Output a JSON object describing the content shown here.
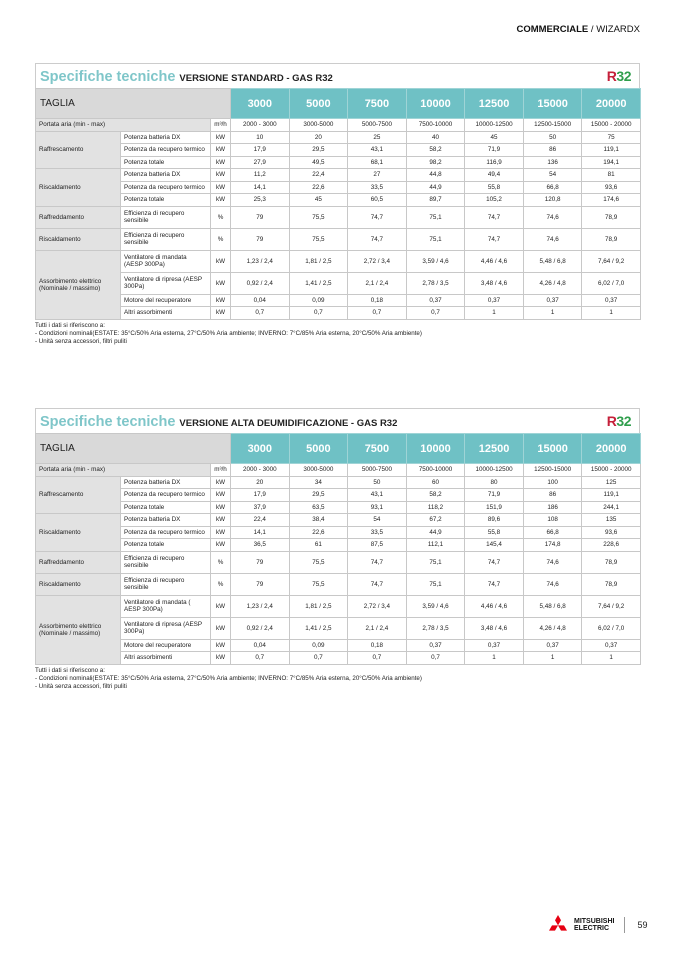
{
  "header": {
    "section": "COMMERCIALE",
    "separator": " / ",
    "product": "WIZARDX"
  },
  "tables": [
    {
      "title_main": "Specifiche tecniche",
      "title_sub": "VERSIONE STANDARD - GAS R32",
      "badge": {
        "r": "R",
        "n": "32"
      },
      "taglia_label": "TAGLIA",
      "sizes": [
        "3000",
        "5000",
        "7500",
        "10000",
        "12500",
        "15000",
        "20000"
      ],
      "rows": [
        {
          "label": "Portata aria (min - max)",
          "unit": "m³/h",
          "values": [
            "2000 - 3000",
            "3000-5000",
            "5000-7500",
            "7500-10000",
            "10000-12500",
            "12500-15000",
            "15000 - 20000"
          ]
        }
      ],
      "groups": [
        {
          "label": "Raffrescamento",
          "rows": [
            {
              "label": "Potenza batteria DX",
              "unit": "kW",
              "values": [
                "10",
                "20",
                "25",
                "40",
                "45",
                "50",
                "75"
              ]
            },
            {
              "label": "Potenza da recupero termico",
              "unit": "kW",
              "values": [
                "17,9",
                "29,5",
                "43,1",
                "58,2",
                "71,9",
                "86",
                "119,1"
              ]
            },
            {
              "label": "Potenza totale",
              "unit": "kW",
              "values": [
                "27,9",
                "49,5",
                "68,1",
                "98,2",
                "116,9",
                "136",
                "194,1"
              ]
            }
          ]
        },
        {
          "label": "Riscaldamento",
          "rows": [
            {
              "label": "Potenza batteria DX",
              "unit": "kW",
              "values": [
                "11,2",
                "22,4",
                "27",
                "44,8",
                "49,4",
                "54",
                "81"
              ]
            },
            {
              "label": "Potenza da recupero termico",
              "unit": "kW",
              "values": [
                "14,1",
                "22,6",
                "33,5",
                "44,9",
                "55,8",
                "66,8",
                "93,6"
              ]
            },
            {
              "label": "Potenza totale",
              "unit": "kW",
              "values": [
                "25,3",
                "45",
                "60,5",
                "89,7",
                "105,2",
                "120,8",
                "174,6"
              ]
            }
          ]
        },
        {
          "label": "Raffreddamento",
          "rows": [
            {
              "label": "Efficienza di recupero sensibile",
              "unit": "%",
              "two": true,
              "values": [
                "79",
                "75,5",
                "74,7",
                "75,1",
                "74,7",
                "74,6",
                "78,9"
              ]
            }
          ]
        },
        {
          "label": "Riscaldamento",
          "rows": [
            {
              "label": "Efficienza di recupero sensibile",
              "unit": "%",
              "two": true,
              "values": [
                "79",
                "75,5",
                "74,7",
                "75,1",
                "74,7",
                "74,6",
                "78,9"
              ]
            }
          ]
        },
        {
          "label": "Assorbimento elettrico (Nominale / massimo)",
          "rows": [
            {
              "label": "Ventilatore di mandata (AESP 300Pa)",
              "unit": "kW",
              "two": true,
              "values": [
                "1,23 / 2,4",
                "1,81 / 2,5",
                "2,72 / 3,4",
                "3,59 / 4,6",
                "4,46 / 4,6",
                "5,48 / 6,8",
                "7,64 / 9,2"
              ]
            },
            {
              "label": "Ventilatore di ripresa (AESP 300Pa)",
              "unit": "kW",
              "two": true,
              "values": [
                "0,92 / 2,4",
                "1,41 / 2,5",
                "2,1 / 2,4",
                "2,78 / 3,5",
                "3,48 / 4,6",
                "4,26 / 4,8",
                "6,02 / 7,0"
              ]
            },
            {
              "label": "Motore del recuperatore",
              "unit": "kW",
              "values": [
                "0,04",
                "0,09",
                "0,18",
                "0,37",
                "0,37",
                "0,37",
                "0,37"
              ]
            },
            {
              "label": "Altri assorbimenti",
              "unit": "kW",
              "values": [
                "0,7",
                "0,7",
                "0,7",
                "0,7",
                "1",
                "1",
                "1"
              ]
            }
          ]
        }
      ],
      "notes": [
        "Tutti i dati si riferiscono a:",
        "- Condizioni nominali(ESTATE: 35°C/50% Aria esterna, 27°C/50% Aria ambiente; INVERNO: 7°C/85% Aria esterna, 20°C/50% Aria ambiente)",
        "- Unità senza accessori, filtri puliti"
      ]
    },
    {
      "title_main": "Specifiche tecniche",
      "title_sub": "VERSIONE ALTA DEUMIDIFICAZIONE - GAS R32",
      "badge": {
        "r": "R",
        "n": "32"
      },
      "taglia_label": "TAGLIA",
      "sizes": [
        "3000",
        "5000",
        "7500",
        "10000",
        "12500",
        "15000",
        "20000"
      ],
      "rows": [
        {
          "label": "Portata aria (min - max)",
          "unit": "m³/h",
          "values": [
            "2000 - 3000",
            "3000-5000",
            "5000-7500",
            "7500-10000",
            "10000-12500",
            "12500-15000",
            "15000 - 20000"
          ]
        }
      ],
      "groups": [
        {
          "label": "Raffrescamento",
          "rows": [
            {
              "label": "Potenza batteria DX",
              "unit": "kW",
              "values": [
                "20",
                "34",
                "50",
                "60",
                "80",
                "100",
                "125"
              ]
            },
            {
              "label": "Potenza da recupero termico",
              "unit": "kW",
              "values": [
                "17,9",
                "29,5",
                "43,1",
                "58,2",
                "71,9",
                "86",
                "119,1"
              ]
            },
            {
              "label": "Potenza totale",
              "unit": "kW",
              "values": [
                "37,9",
                "63,5",
                "93,1",
                "118,2",
                "151,9",
                "186",
                "244,1"
              ]
            }
          ]
        },
        {
          "label": "Riscaldamento",
          "rows": [
            {
              "label": "Potenza batteria DX",
              "unit": "kW",
              "values": [
                "22,4",
                "38,4",
                "54",
                "67,2",
                "89,6",
                "108",
                "135"
              ]
            },
            {
              "label": "Potenza da recupero termico",
              "unit": "kW",
              "values": [
                "14,1",
                "22,6",
                "33,5",
                "44,9",
                "55,8",
                "66,8",
                "93,6"
              ]
            },
            {
              "label": "Potenza totale",
              "unit": "kW",
              "values": [
                "36,5",
                "61",
                "87,5",
                "112,1",
                "145,4",
                "174,8",
                "228,6"
              ]
            }
          ]
        },
        {
          "label": "Raffreddamento",
          "rows": [
            {
              "label": "Efficienza di recupero sensibile",
              "unit": "%",
              "two": true,
              "values": [
                "79",
                "75,5",
                "74,7",
                "75,1",
                "74,7",
                "74,6",
                "78,9"
              ]
            }
          ]
        },
        {
          "label": "Riscaldamento",
          "rows": [
            {
              "label": "Efficienza di recupero sensibile",
              "unit": "%",
              "two": true,
              "values": [
                "79",
                "75,5",
                "74,7",
                "75,1",
                "74,7",
                "74,6",
                "78,9"
              ]
            }
          ]
        },
        {
          "label": "Assorbimento elettrico (Nominale / massimo)",
          "rows": [
            {
              "label": "Ventilatore di mandata ( AESP 300Pa)",
              "unit": "kW",
              "two": true,
              "values": [
                "1,23 / 2,4",
                "1,81 / 2,5",
                "2,72 / 3,4",
                "3,59 / 4,6",
                "4,46 / 4,6",
                "5,48 / 6,8",
                "7,64 / 9,2"
              ]
            },
            {
              "label": "Ventilatore di ripresa (AESP 300Pa)",
              "unit": "kW",
              "two": true,
              "values": [
                "0,92 / 2,4",
                "1,41 / 2,5",
                "2,1 / 2,4",
                "2,78 / 3,5",
                "3,48 / 4,6",
                "4,26 / 4,8",
                "6,02 / 7,0"
              ]
            },
            {
              "label": "Motore del recuperatore",
              "unit": "kW",
              "values": [
                "0,04",
                "0,09",
                "0,18",
                "0,37",
                "0,37",
                "0,37",
                "0,37"
              ]
            },
            {
              "label": "Altri assorbimenti",
              "unit": "kW",
              "values": [
                "0,7",
                "0,7",
                "0,7",
                "0,7",
                "1",
                "1",
                "1"
              ]
            }
          ]
        }
      ],
      "notes": [
        "Tutti i dati si riferiscono a:",
        "- Condizioni nominali(ESTATE: 35°C/50% Aria esterna, 27°C/50% Aria ambiente; INVERNO: 7°C/85% Aria esterna, 20°C/50% Aria ambiente)",
        "- Unità senza accessori, filtri puliti"
      ]
    }
  ],
  "footer": {
    "brand_line1": "MITSUBISHI",
    "brand_line2": "ELECTRIC",
    "page_number": "59"
  },
  "colors": {
    "accent_teal": "#6fc1c5",
    "title_teal": "#7fc6c9",
    "r32_red": "#c5203a",
    "r32_green": "#2f9e4c",
    "logo_red": "#e60012"
  }
}
